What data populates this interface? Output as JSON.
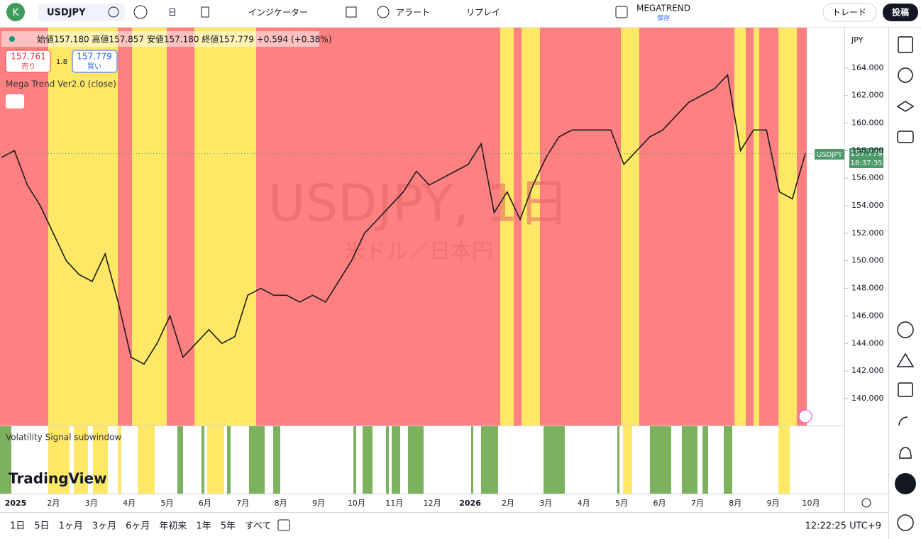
{
  "toolbar": {
    "avatar": "K",
    "symbol": "USDJPY",
    "interval": "日",
    "indicators": "インジケーター",
    "alert": "アラート",
    "replay": "リプレイ",
    "layout_name": "MEGATREND",
    "layout_status": "保存",
    "trade": "トレード",
    "publish": "投稿"
  },
  "legend": {
    "ohlc": "始値157.180 高値157.857 安値157.180 終値157.779 +0.594 (+0.38%)",
    "sell_price": "157.761",
    "sell_label": "売り",
    "spread": "1.8",
    "buy_price": "157.779",
    "buy_label": "買い",
    "indicator": "Mega Trend Ver2.0 (close)",
    "subwindow": "Volatility Signal subwindow"
  },
  "watermark": {
    "title": "USDJPY, 1日",
    "subtitle": "米ドル／日本円"
  },
  "price_axis": {
    "currency": "JPY",
    "symbol_tag": "USDJPY",
    "last_price": "157.779",
    "countdown": "18:37:35"
  },
  "chart_data": {
    "type": "line",
    "series": [
      {
        "name": "USDJPY",
        "color": "#1b1b1b",
        "values": [
          157.5,
          158,
          155.5,
          154,
          152,
          150,
          149,
          148.5,
          150.5,
          147,
          143,
          142.5,
          144,
          146,
          143,
          144,
          145,
          144,
          144.5,
          147.5,
          148,
          147.5,
          147.5,
          147,
          147.5,
          147,
          148.5,
          150,
          152,
          153,
          154,
          155,
          156.5,
          155.5,
          156,
          156.5,
          157,
          158.5,
          153.5,
          155,
          153,
          155.5,
          157.5,
          159,
          159.5,
          159.5,
          159.5,
          159.5,
          157,
          158,
          159,
          159.5,
          160.5,
          161.5,
          162,
          162.5,
          163.5,
          158,
          159.5,
          159.5,
          155,
          154.5,
          157.8
        ]
      }
    ],
    "ylim": [
      138.04,
      166.98
    ],
    "yticks": [
      {
        "value": 140,
        "label": "140.000"
      },
      {
        "value": 142,
        "label": "142.000"
      },
      {
        "value": 144,
        "label": "144.000"
      },
      {
        "value": 146,
        "label": "146.000"
      },
      {
        "value": 148,
        "label": "148.000"
      },
      {
        "value": 150,
        "label": "150.000"
      },
      {
        "value": 152,
        "label": "152.000"
      },
      {
        "value": 154,
        "label": "154.000"
      },
      {
        "value": 156,
        "label": "156.000"
      },
      {
        "value": 158,
        "label": "158.000"
      },
      {
        "value": 160,
        "label": "160.000"
      },
      {
        "value": 162,
        "label": "162.000"
      },
      {
        "value": 164,
        "label": "164.000"
      }
    ],
    "last_value": 157.779
  },
  "time_axis": {
    "labels": [
      "2025",
      "2月",
      "3月",
      "4月",
      "5月",
      "6月",
      "7月",
      "8月",
      "9月",
      "10月",
      "11月",
      "12月",
      "2026",
      "2月",
      "3月",
      "4月",
      "5月",
      "6月",
      "7月",
      "8月",
      "9月",
      "10月"
    ]
  },
  "brand": "TradingView",
  "bottom_bar": {
    "ranges": [
      "1日",
      "5日",
      "1ヶ月",
      "3ヶ月",
      "6ヶ月",
      "年初来",
      "1年",
      "5年",
      "すべて"
    ],
    "clock": "12:22:25 UTC+9"
  }
}
